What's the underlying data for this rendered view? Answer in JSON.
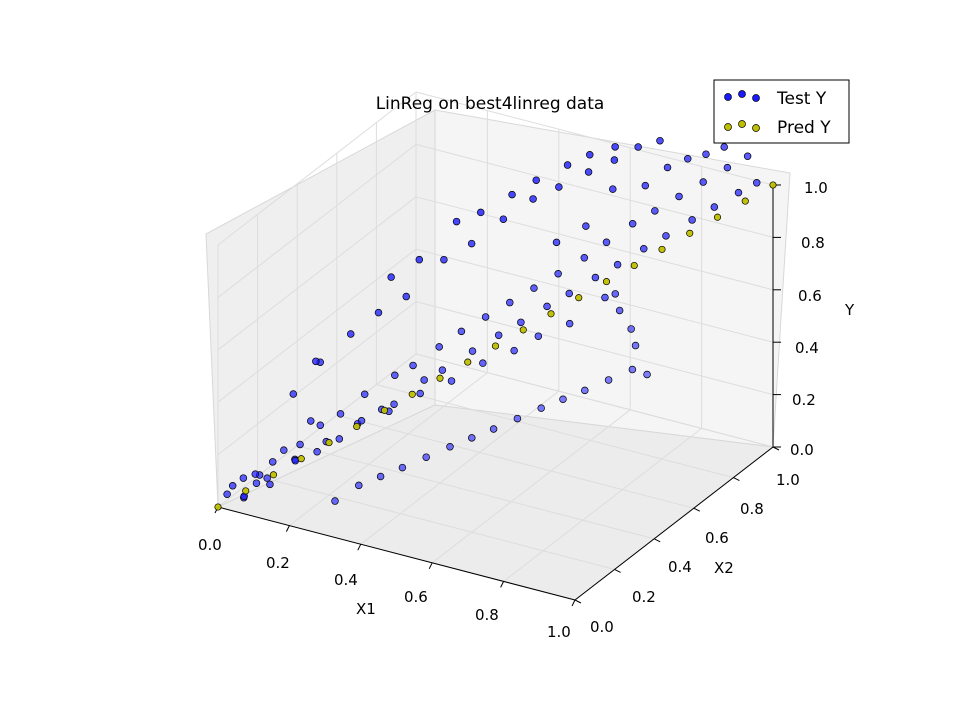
{
  "chart_data": {
    "type": "scatter",
    "projection": "3d",
    "title": "LinReg on best4linreg data",
    "xlabel": "X1",
    "ylabel": "X2",
    "zlabel": "Y",
    "xlim": [
      0,
      1
    ],
    "ylim": [
      0,
      1
    ],
    "zlim": [
      0,
      1
    ],
    "grid": true,
    "legend_position": "top-right",
    "x_ticks": [
      "0.0",
      "0.2",
      "0.4",
      "0.6",
      "0.8",
      "1.0"
    ],
    "y_ticks": [
      "0.0",
      "0.2",
      "0.4",
      "0.6",
      "0.8",
      "1.0"
    ],
    "z_ticks": [
      "0.0",
      "0.2",
      "0.4",
      "0.6",
      "0.8",
      "1.0"
    ],
    "series": [
      {
        "name": "Test Y",
        "color": "#1a1aff",
        "points": [
          [
            0.02,
            0.01,
            0.05
          ],
          [
            0.03,
            0.02,
            0.08
          ],
          [
            0.05,
            0.04,
            0.03
          ],
          [
            0.06,
            0.02,
            0.12
          ],
          [
            0.04,
            0.06,
            0.02
          ],
          [
            0.08,
            0.05,
            0.09
          ],
          [
            0.1,
            0.03,
            0.14
          ],
          [
            0.12,
            0.06,
            0.18
          ],
          [
            0.09,
            0.1,
            0.06
          ],
          [
            0.14,
            0.08,
            0.22
          ],
          [
            0.15,
            0.12,
            0.16
          ],
          [
            0.18,
            0.09,
            0.25
          ],
          [
            0.2,
            0.14,
            0.2
          ],
          [
            0.16,
            0.18,
            0.28
          ],
          [
            0.22,
            0.12,
            0.32
          ],
          [
            0.24,
            0.18,
            0.24
          ],
          [
            0.26,
            0.15,
            0.36
          ],
          [
            0.28,
            0.22,
            0.3
          ],
          [
            0.3,
            0.2,
            0.42
          ],
          [
            0.32,
            0.25,
            0.34
          ],
          [
            0.34,
            0.28,
            0.46
          ],
          [
            0.36,
            0.24,
            0.38
          ],
          [
            0.38,
            0.3,
            0.5
          ],
          [
            0.4,
            0.32,
            0.44
          ],
          [
            0.42,
            0.36,
            0.55
          ],
          [
            0.44,
            0.34,
            0.48
          ],
          [
            0.46,
            0.4,
            0.6
          ],
          [
            0.48,
            0.42,
            0.52
          ],
          [
            0.5,
            0.45,
            0.64
          ],
          [
            0.52,
            0.48,
            0.56
          ],
          [
            0.54,
            0.5,
            0.68
          ],
          [
            0.56,
            0.52,
            0.6
          ],
          [
            0.58,
            0.55,
            0.72
          ],
          [
            0.6,
            0.58,
            0.64
          ],
          [
            0.62,
            0.6,
            0.76
          ],
          [
            0.64,
            0.62,
            0.68
          ],
          [
            0.66,
            0.66,
            0.8
          ],
          [
            0.68,
            0.68,
            0.72
          ],
          [
            0.7,
            0.7,
            0.85
          ],
          [
            0.72,
            0.72,
            0.76
          ],
          [
            0.74,
            0.76,
            0.9
          ],
          [
            0.76,
            0.78,
            0.8
          ],
          [
            0.78,
            0.8,
            0.94
          ],
          [
            0.8,
            0.82,
            0.84
          ],
          [
            0.82,
            0.85,
            0.98
          ],
          [
            0.84,
            0.88,
            0.88
          ],
          [
            0.86,
            0.9,
            1.02
          ],
          [
            0.88,
            0.92,
            0.92
          ],
          [
            0.9,
            0.95,
            1.06
          ],
          [
            0.92,
            0.97,
            0.96
          ],
          [
            0.94,
            0.98,
            1.1
          ],
          [
            0.96,
            0.99,
            1.0
          ],
          [
            0.1,
            0.2,
            0.35
          ],
          [
            0.12,
            0.3,
            0.42
          ],
          [
            0.08,
            0.35,
            0.38
          ],
          [
            0.15,
            0.4,
            0.48
          ],
          [
            0.2,
            0.45,
            0.55
          ],
          [
            0.25,
            0.5,
            0.6
          ],
          [
            0.18,
            0.55,
            0.62
          ],
          [
            0.3,
            0.6,
            0.7
          ],
          [
            0.22,
            0.62,
            0.66
          ],
          [
            0.35,
            0.65,
            0.75
          ],
          [
            0.28,
            0.7,
            0.78
          ],
          [
            0.4,
            0.72,
            0.82
          ],
          [
            0.32,
            0.75,
            0.8
          ],
          [
            0.45,
            0.78,
            0.88
          ],
          [
            0.38,
            0.8,
            0.86
          ],
          [
            0.5,
            0.82,
            0.92
          ],
          [
            0.42,
            0.85,
            0.9
          ],
          [
            0.55,
            0.88,
            0.96
          ],
          [
            0.48,
            0.9,
            0.95
          ],
          [
            0.6,
            0.92,
            1.0
          ],
          [
            0.52,
            0.94,
            0.98
          ],
          [
            0.65,
            0.95,
            1.05
          ],
          [
            0.58,
            0.96,
            1.02
          ],
          [
            0.7,
            0.97,
            1.08
          ],
          [
            0.3,
            0.05,
            0.1
          ],
          [
            0.35,
            0.08,
            0.16
          ],
          [
            0.4,
            0.1,
            0.2
          ],
          [
            0.45,
            0.12,
            0.24
          ],
          [
            0.5,
            0.15,
            0.28
          ],
          [
            0.55,
            0.18,
            0.32
          ],
          [
            0.6,
            0.2,
            0.36
          ],
          [
            0.65,
            0.22,
            0.4
          ],
          [
            0.7,
            0.25,
            0.44
          ],
          [
            0.75,
            0.28,
            0.48
          ],
          [
            0.8,
            0.3,
            0.52
          ],
          [
            0.85,
            0.32,
            0.56
          ],
          [
            0.9,
            0.35,
            0.6
          ],
          [
            0.95,
            0.38,
            0.64
          ],
          [
            0.98,
            0.4,
            0.62
          ],
          [
            0.92,
            0.45,
            0.68
          ],
          [
            0.88,
            0.5,
            0.7
          ],
          [
            0.82,
            0.55,
            0.72
          ],
          [
            0.78,
            0.6,
            0.74
          ],
          [
            0.74,
            0.62,
            0.7
          ],
          [
            0.68,
            0.55,
            0.62
          ],
          [
            0.62,
            0.5,
            0.58
          ],
          [
            0.58,
            0.45,
            0.54
          ],
          [
            0.52,
            0.4,
            0.5
          ],
          [
            0.46,
            0.35,
            0.44
          ],
          [
            0.4,
            0.3,
            0.4
          ],
          [
            0.34,
            0.25,
            0.34
          ],
          [
            0.28,
            0.2,
            0.3
          ],
          [
            0.22,
            0.15,
            0.24
          ],
          [
            0.16,
            0.1,
            0.18
          ],
          [
            0.11,
            0.05,
            0.12
          ],
          [
            0.06,
            0.08,
            0.1
          ],
          [
            0.64,
            0.84,
            0.95
          ],
          [
            0.72,
            0.86,
            0.98
          ],
          [
            0.76,
            0.9,
            1.04
          ],
          [
            0.8,
            0.93,
            1.07
          ],
          [
            0.84,
            0.95,
            1.09
          ],
          [
            0.88,
            0.97,
            1.12
          ],
          [
            0.56,
            0.7,
            0.8
          ],
          [
            0.62,
            0.74,
            0.86
          ]
        ]
      },
      {
        "name": "Pred Y",
        "color": "#bfbf00",
        "points": [
          [
            0.0,
            0.0,
            0.0
          ],
          [
            0.05,
            0.05,
            0.05
          ],
          [
            0.1,
            0.1,
            0.1
          ],
          [
            0.15,
            0.15,
            0.15
          ],
          [
            0.2,
            0.2,
            0.2
          ],
          [
            0.25,
            0.25,
            0.25
          ],
          [
            0.3,
            0.3,
            0.3
          ],
          [
            0.35,
            0.35,
            0.35
          ],
          [
            0.4,
            0.4,
            0.4
          ],
          [
            0.45,
            0.45,
            0.45
          ],
          [
            0.5,
            0.5,
            0.5
          ],
          [
            0.55,
            0.55,
            0.55
          ],
          [
            0.6,
            0.6,
            0.6
          ],
          [
            0.65,
            0.65,
            0.65
          ],
          [
            0.7,
            0.7,
            0.7
          ],
          [
            0.75,
            0.75,
            0.75
          ],
          [
            0.8,
            0.8,
            0.8
          ],
          [
            0.85,
            0.85,
            0.85
          ],
          [
            0.9,
            0.9,
            0.9
          ],
          [
            0.95,
            0.95,
            0.95
          ],
          [
            1.0,
            1.0,
            1.0
          ]
        ]
      }
    ]
  }
}
